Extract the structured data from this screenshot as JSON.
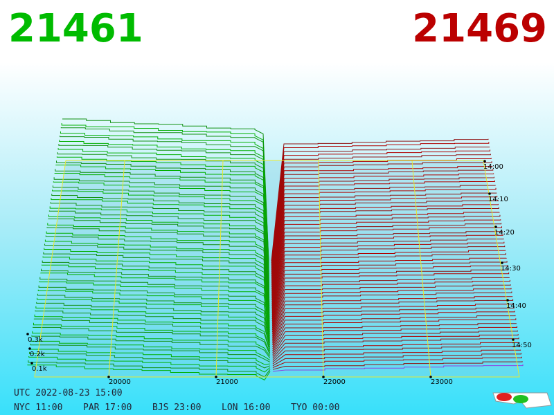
{
  "header": {
    "bid": "21461",
    "ask": "21469"
  },
  "axes": {
    "price_ticks": [
      "20000",
      "21000",
      "22000",
      "23000"
    ],
    "time_ticks": [
      "14:00",
      "14:10",
      "14:20",
      "14:30",
      "14:40",
      "14:50"
    ],
    "depth_ticks": [
      "0.3k",
      "0.2k",
      "0.1k"
    ]
  },
  "footer": {
    "utc": "UTC 2022-08-23 15:00",
    "zones": [
      "NYC 11:00",
      "PAR 17:00",
      "BJS 23:00",
      "LON 16:00",
      "TYO 00:00"
    ]
  }
}
